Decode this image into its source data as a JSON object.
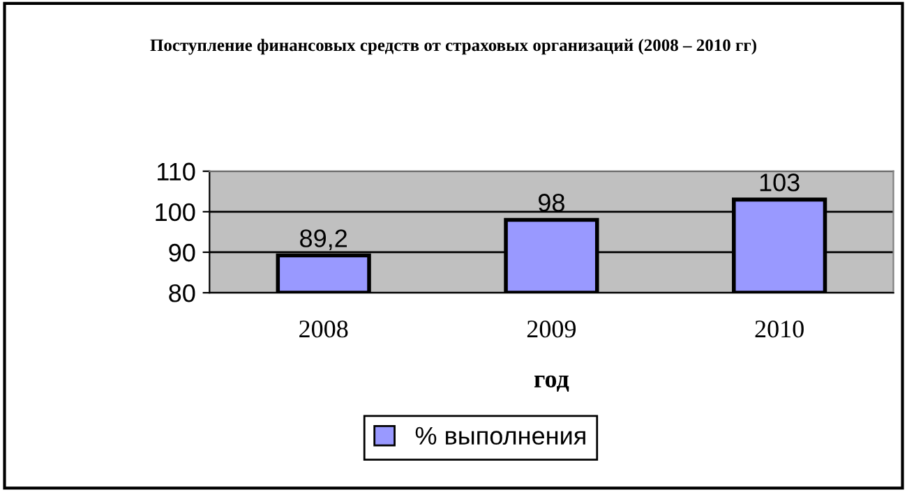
{
  "chart_data": {
    "type": "bar",
    "title": "Поступление финансовых средств от страховых организаций (2008 – 2010 гг)",
    "categories": [
      "2008",
      "2009",
      "2010"
    ],
    "xlabel": "год",
    "series": [
      {
        "name": "% выполнения",
        "color": "#9999ff",
        "values": [
          89.2,
          98,
          103
        ],
        "value_labels": [
          "89,2",
          "98",
          "103"
        ]
      }
    ],
    "ylim": [
      80,
      110
    ],
    "yticks": [
      80,
      90,
      100,
      110
    ],
    "grid": "y",
    "legend": "bottom"
  }
}
